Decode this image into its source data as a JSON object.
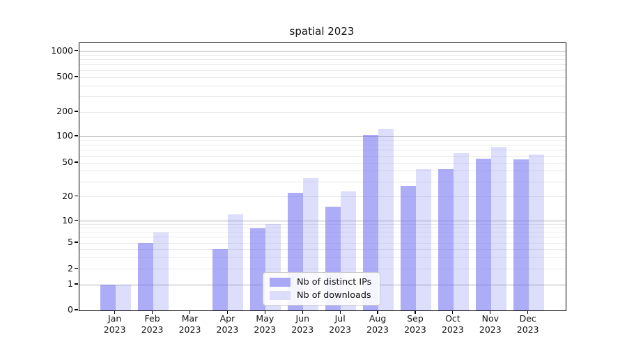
{
  "page": {
    "background": "#ffffff"
  },
  "chart_data": {
    "type": "bar",
    "title": "spatial 2023",
    "categories": [
      "Jan",
      "Feb",
      "Mar",
      "Apr",
      "May",
      "Jun",
      "Jul",
      "Aug",
      "Sep",
      "Oct",
      "Nov",
      "Dec"
    ],
    "category_year": "2023",
    "series": [
      {
        "name": "Nb of distinct IPs",
        "color": "#6a6af0",
        "fill_alpha": 0.55,
        "legend_swatch_color": "#a9a9f6",
        "values": [
          1,
          5,
          0,
          4,
          8,
          22,
          15,
          105,
          27,
          42,
          56,
          55
        ]
      },
      {
        "name": "Nb of downloads",
        "color": "#6a6af0",
        "fill_alpha": 0.23,
        "legend_swatch_color": "#dcdcfb",
        "values": [
          1,
          7,
          0,
          12,
          9,
          33,
          23,
          125,
          42,
          65,
          76,
          62
        ]
      }
    ],
    "y_axis": {
      "scale": "symlog",
      "ticks": [
        0,
        1,
        2,
        5,
        10,
        20,
        50,
        100,
        200,
        500,
        1000
      ],
      "ylim": [
        0,
        1000
      ]
    },
    "x_axis": {
      "label_format": "month over year"
    },
    "grid": {
      "major_color": "#b0b0b0",
      "minor_color": "#eaeaea",
      "major_values": [
        1,
        10,
        100,
        1000
      ],
      "minor_step_pattern": "2-9 per decade"
    },
    "legend": {
      "position": "lower center inside"
    }
  }
}
